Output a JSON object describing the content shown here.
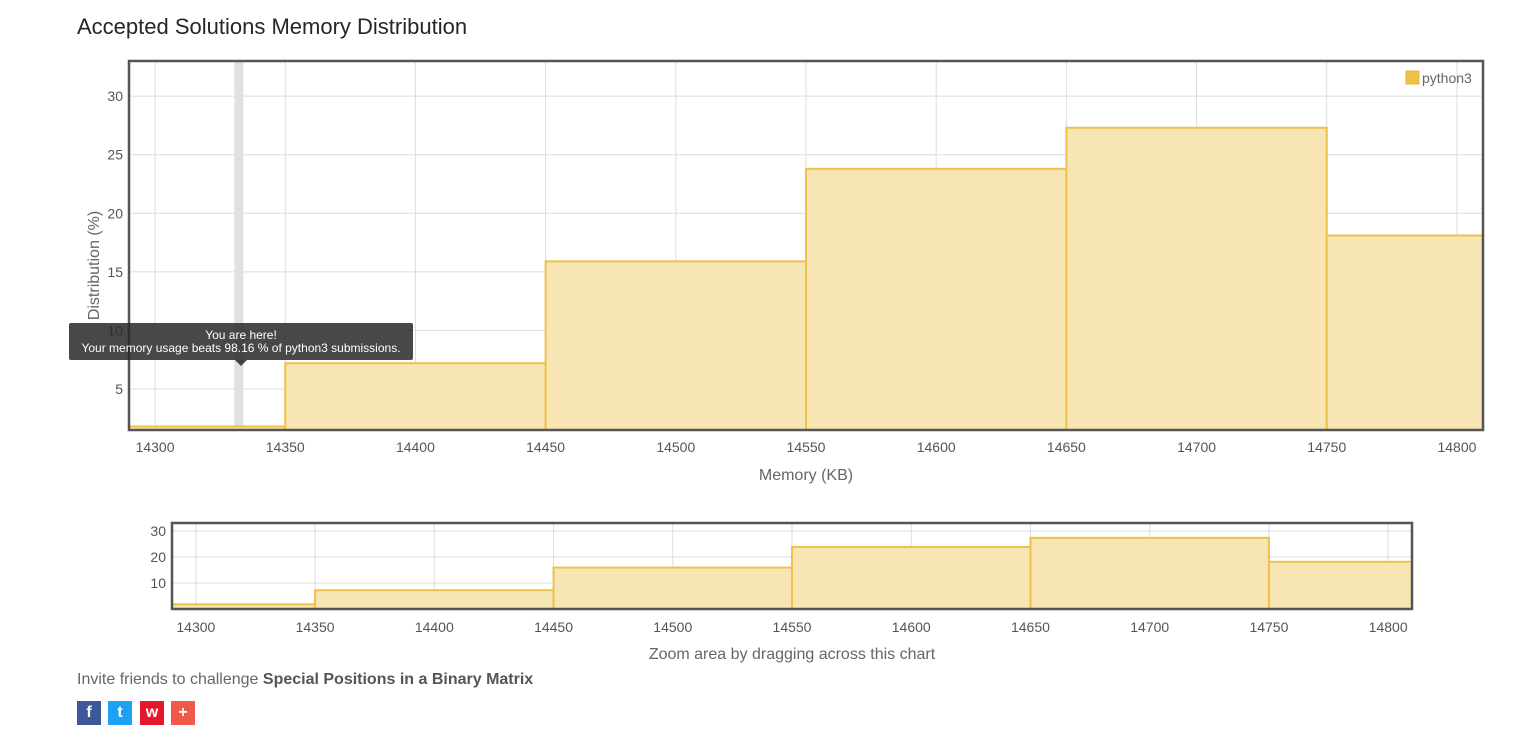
{
  "title": "Accepted Solutions Memory Distribution",
  "chart_data": [
    {
      "type": "bar",
      "xlabel": "Memory (KB)",
      "ylabel": "Distribution (%)",
      "xlim": [
        14290,
        14810
      ],
      "ylim": [
        1.5,
        33
      ],
      "x_ticks": [
        14300,
        14350,
        14400,
        14450,
        14500,
        14550,
        14600,
        14650,
        14700,
        14750,
        14800
      ],
      "y_ticks": [
        5,
        10,
        15,
        20,
        25,
        30
      ],
      "grid": true,
      "legend_position": "top-right",
      "series": [
        {
          "name": "python3",
          "bins": [
            {
              "x0": 14290,
              "x1": 14350,
              "value": 1.8
            },
            {
              "x0": 14350,
              "x1": 14450,
              "value": 7.2
            },
            {
              "x0": 14450,
              "x1": 14550,
              "value": 15.9
            },
            {
              "x0": 14550,
              "x1": 14650,
              "value": 23.8
            },
            {
              "x0": 14650,
              "x1": 14750,
              "value": 27.3
            },
            {
              "x0": 14750,
              "x1": 14810,
              "value": 18.1
            }
          ]
        }
      ],
      "marker_x": 14332
    },
    {
      "type": "bar",
      "xlabel": "Zoom area by dragging across this chart",
      "xlim": [
        14290,
        14810
      ],
      "ylim": [
        0,
        33
      ],
      "x_ticks": [
        14300,
        14350,
        14400,
        14450,
        14500,
        14550,
        14600,
        14650,
        14700,
        14750,
        14800
      ],
      "y_ticks": [
        10,
        20,
        30
      ],
      "grid": true
    }
  ],
  "colors": {
    "bar_fill": "#f7e6b3",
    "bar_stroke": "#efc14a",
    "grid": "#dddddd",
    "frame": "#555555"
  },
  "tooltip": {
    "line1": "You are here!",
    "line2": "Your memory usage beats 98.16 % of python3 submissions."
  },
  "invite": {
    "prefix": "Invite friends to challenge ",
    "problem": "Special Positions in a Binary Matrix"
  },
  "share": {
    "facebook_icon": "f",
    "twitter_icon": "t",
    "weibo_icon": "w",
    "more_icon": "+"
  }
}
